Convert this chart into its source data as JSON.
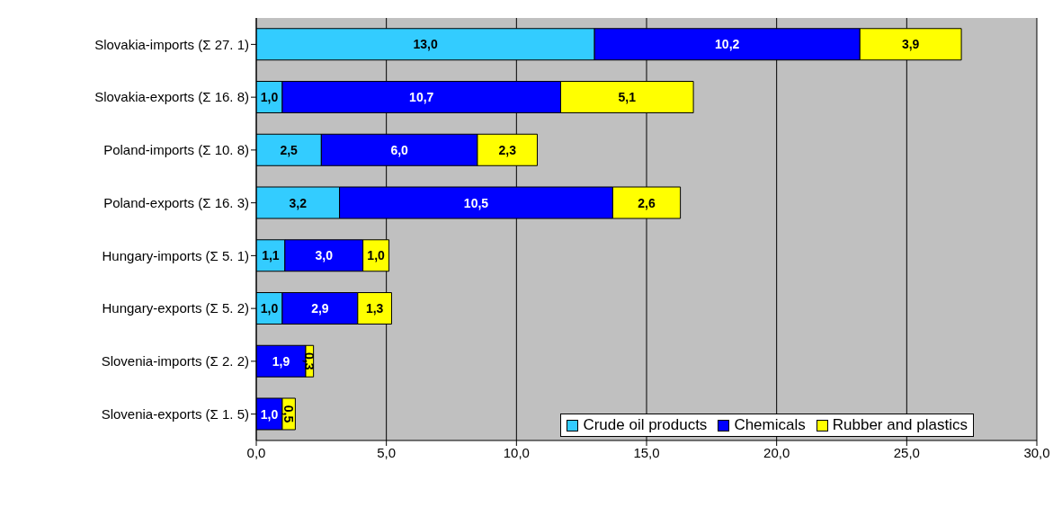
{
  "chart_data": {
    "type": "bar",
    "orientation": "horizontal",
    "stacked": true,
    "categories": [
      "Slovakia-imports (Σ 27. 1)",
      "Slovakia-exports (Σ 16. 8)",
      "Poland-imports (Σ 10. 8)",
      "Poland-exports (Σ 16. 3)",
      "Hungary-imports (Σ 5. 1)",
      "Hungary-exports (Σ 5. 2)",
      "Slovenia-imports (Σ 2. 2)",
      "Slovenia-exports (Σ 1. 5)"
    ],
    "series": [
      {
        "name": "Crude oil products",
        "color": "#33ccff",
        "values": [
          13.0,
          1.0,
          2.5,
          3.2,
          1.1,
          1.0,
          null,
          null
        ],
        "value_labels": [
          "13,0",
          "1,0",
          "2,5",
          "3,2",
          "1,1",
          "1,0",
          null,
          null
        ]
      },
      {
        "name": "Chemicals",
        "color": "#0000ff",
        "values": [
          10.2,
          10.7,
          6.0,
          10.5,
          3.0,
          2.9,
          1.9,
          1.0
        ],
        "value_labels": [
          "10,2",
          "10,7",
          "6,0",
          "10,5",
          "3,0",
          "2,9",
          "1,9",
          "1,0"
        ]
      },
      {
        "name": "Rubber and plastics",
        "color": "#ffff00",
        "values": [
          3.9,
          5.1,
          2.3,
          2.6,
          1.0,
          1.3,
          0.3,
          0.5
        ],
        "value_labels": [
          "3,9",
          "5,1",
          "2,3",
          "2,6",
          "1,0",
          "1,3",
          "0,3",
          "0,5"
        ]
      }
    ],
    "xlim": [
      0,
      30
    ],
    "xticks": [
      {
        "value": 0,
        "label": "0,0"
      },
      {
        "value": 5,
        "label": "5,0"
      },
      {
        "value": 10,
        "label": "10,0"
      },
      {
        "value": 15,
        "label": "15,0"
      },
      {
        "value": 20,
        "label": "20,0"
      },
      {
        "value": 25,
        "label": "25,0"
      },
      {
        "value": 30,
        "label": "30,0"
      }
    ],
    "grid": "x",
    "legend": "bottom right"
  }
}
